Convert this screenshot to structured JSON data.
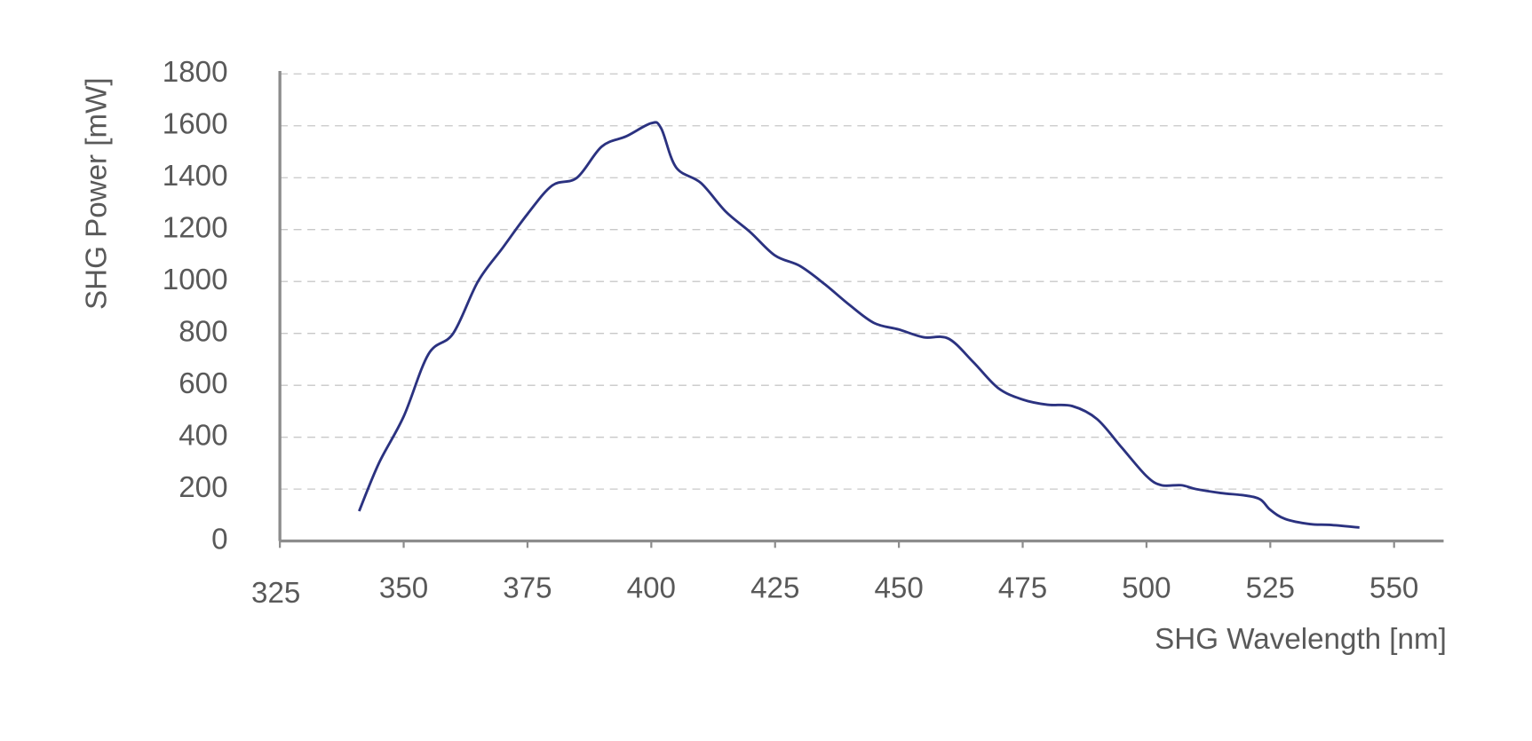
{
  "chart_data": {
    "type": "line",
    "x_label": "SHG Wavelength [nm]",
    "y_label": "SHG Power [mW]",
    "x": [
      341,
      345,
      350,
      355,
      360,
      365,
      370,
      375,
      380,
      385,
      390,
      395,
      400,
      402,
      405,
      410,
      415,
      420,
      425,
      430,
      435,
      440,
      445,
      450,
      455,
      460,
      465,
      470,
      475,
      480,
      485,
      490,
      495,
      500,
      503,
      507,
      510,
      515,
      520,
      523,
      525,
      528,
      533,
      537,
      543
    ],
    "series": [
      {
        "color": "#2b3280",
        "values": [
          115,
          300,
          480,
          720,
          800,
          1000,
          1130,
          1260,
          1370,
          1400,
          1520,
          1560,
          1610,
          1590,
          1440,
          1380,
          1270,
          1190,
          1100,
          1060,
          990,
          910,
          840,
          815,
          785,
          780,
          690,
          590,
          545,
          525,
          520,
          470,
          360,
          250,
          215,
          215,
          200,
          185,
          175,
          160,
          120,
          85,
          65,
          62,
          52
        ]
      }
    ],
    "xlim": [
      325,
      560
    ],
    "xticks": [
      325,
      350,
      375,
      400,
      425,
      450,
      475,
      500,
      525,
      550
    ],
    "ylim": [
      0,
      1800
    ],
    "yticks": [
      0,
      200,
      400,
      600,
      800,
      1000,
      1200,
      1400,
      1600,
      1800
    ],
    "grid": true
  }
}
